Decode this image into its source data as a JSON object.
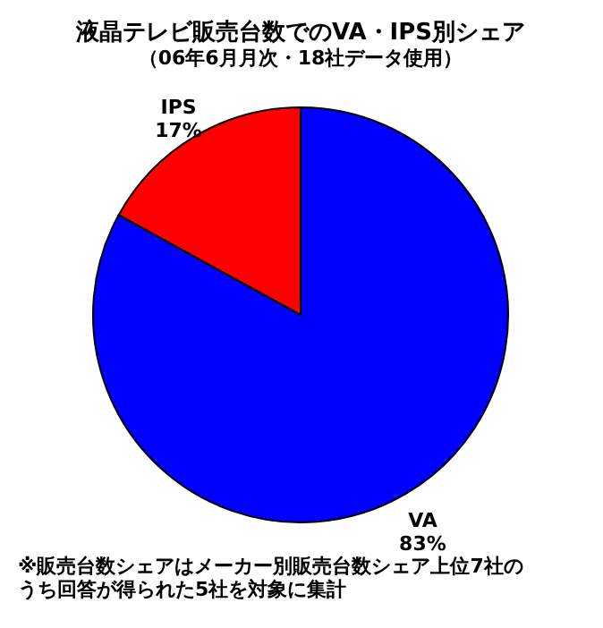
{
  "chart_data": {
    "type": "pie",
    "title": "液晶テレビ販売台数でのVA・IPS別シェア",
    "subtitle": "（06年6月月次・18社データ使用）",
    "categories": [
      "VA",
      "IPS"
    ],
    "values": [
      83,
      17
    ],
    "colors": [
      "#0000ff",
      "#ff0000"
    ],
    "value_labels": [
      "83%",
      "17%"
    ],
    "legend": false,
    "annotations": [
      "※販売台数シェアはメーカー別販売台数シェア上位7社の",
      "うち回答が得られた5社を対象に集計"
    ]
  }
}
